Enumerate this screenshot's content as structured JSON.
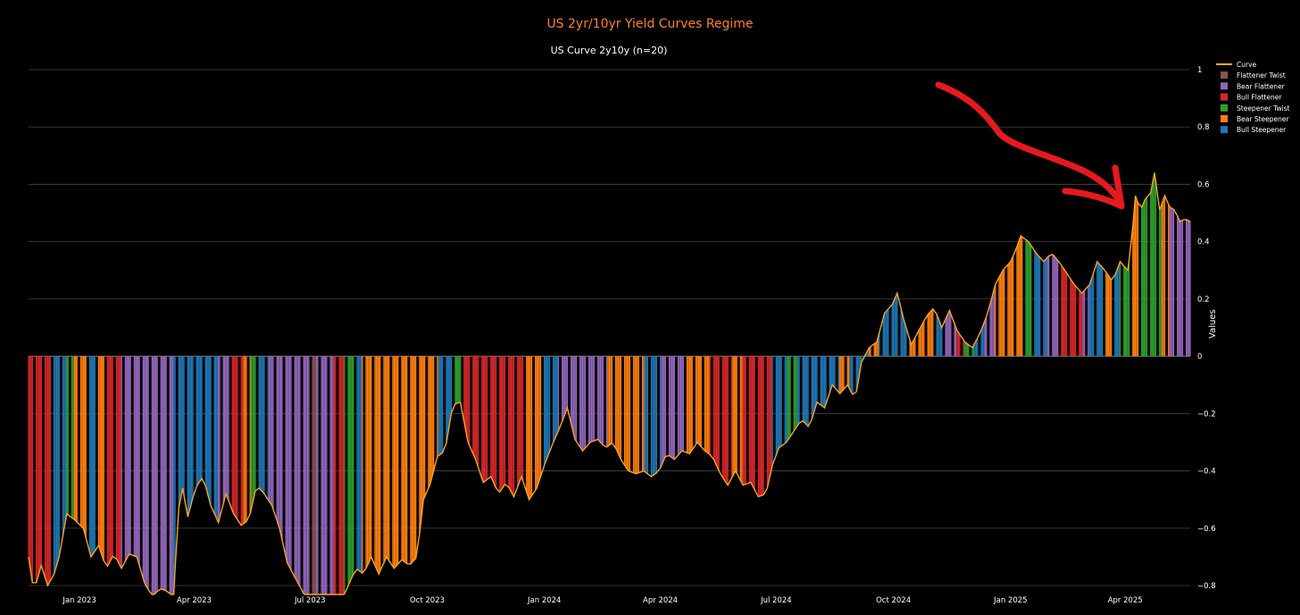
{
  "chart_data": {
    "type": "bar",
    "title": "US 2yr/10yr Yield Curves Regime",
    "subtitle": "US Curve 2y10y (n=20)",
    "ylabel": "Values",
    "xlabel": "",
    "ylim": [
      -0.8,
      1.0
    ],
    "xlim": [
      "2022-11-22",
      "2025-05-22"
    ],
    "grid": true,
    "legend_position": "top-right",
    "y_ticks": [
      {
        "value": 1.0,
        "label": "1"
      },
      {
        "value": 0.8,
        "label": "0.8"
      },
      {
        "value": 0.6,
        "label": "0.6"
      },
      {
        "value": 0.4,
        "label": "0.4"
      },
      {
        "value": 0.2,
        "label": "0.2"
      },
      {
        "value": 0.0,
        "label": "0"
      },
      {
        "value": -0.2,
        "label": "−0.2"
      },
      {
        "value": -0.4,
        "label": "−0.4"
      },
      {
        "value": -0.6,
        "label": "−0.6"
      },
      {
        "value": -0.8,
        "label": "−0.8"
      }
    ],
    "x_ticks": [
      {
        "date": "2023-01-01",
        "label": "Jan 2023"
      },
      {
        "date": "2023-04-01",
        "label": "Apr 2023"
      },
      {
        "date": "2023-07-01",
        "label": "Jul 2023"
      },
      {
        "date": "2023-10-01",
        "label": "Oct 2023"
      },
      {
        "date": "2024-01-01",
        "label": "Jan 2024"
      },
      {
        "date": "2024-04-01",
        "label": "Apr 2024"
      },
      {
        "date": "2024-07-01",
        "label": "Jul 2024"
      },
      {
        "date": "2024-10-01",
        "label": "Oct 2024"
      },
      {
        "date": "2025-01-01",
        "label": "Jan 2025"
      },
      {
        "date": "2025-04-01",
        "label": "Apr 2025"
      }
    ],
    "legend": [
      {
        "name": "Curve",
        "kind": "line",
        "color": "#f5a623"
      },
      {
        "name": "Flattener Twist",
        "kind": "bar",
        "color": "#8c564b"
      },
      {
        "name": "Bear Flattener",
        "kind": "bar",
        "color": "#9467bd"
      },
      {
        "name": "Bull Flattener",
        "kind": "bar",
        "color": "#d62728"
      },
      {
        "name": "Steepener Twist",
        "kind": "bar",
        "color": "#2ca02c"
      },
      {
        "name": "Bear Steepener",
        "kind": "bar",
        "color": "#ff7f0e"
      },
      {
        "name": "Bull Steepener",
        "kind": "bar",
        "color": "#1f77b4"
      }
    ],
    "curve_keypoints": [
      [
        "2022-11-22",
        -0.7
      ],
      [
        "2022-11-26",
        -0.82
      ],
      [
        "2022-12-02",
        -0.73
      ],
      [
        "2022-12-07",
        -0.8
      ],
      [
        "2022-12-12",
        -0.76
      ],
      [
        "2022-12-16",
        -0.7
      ],
      [
        "2022-12-22",
        -0.55
      ],
      [
        "2022-12-28",
        -0.57
      ],
      [
        "2023-01-04",
        -0.6
      ],
      [
        "2023-01-10",
        -0.7
      ],
      [
        "2023-01-16",
        -0.66
      ],
      [
        "2023-01-22",
        -0.74
      ],
      [
        "2023-01-28",
        -0.69
      ],
      [
        "2023-02-03",
        -0.74
      ],
      [
        "2023-02-09",
        -0.69
      ],
      [
        "2023-02-15",
        -0.7
      ],
      [
        "2023-02-21",
        -0.79
      ],
      [
        "2023-02-27",
        -0.84
      ],
      [
        "2023-03-05",
        -0.81
      ],
      [
        "2023-03-11",
        -0.82
      ],
      [
        "2023-03-16",
        -0.84
      ],
      [
        "2023-03-19",
        -0.55
      ],
      [
        "2023-03-23",
        -0.46
      ],
      [
        "2023-03-27",
        -0.56
      ],
      [
        "2023-04-02",
        -0.46
      ],
      [
        "2023-04-08",
        -0.42
      ],
      [
        "2023-04-14",
        -0.52
      ],
      [
        "2023-04-20",
        -0.58
      ],
      [
        "2023-04-26",
        -0.48
      ],
      [
        "2023-05-02",
        -0.55
      ],
      [
        "2023-05-08",
        -0.59
      ],
      [
        "2023-05-14",
        -0.57
      ],
      [
        "2023-05-20",
        -0.45
      ],
      [
        "2023-05-26",
        -0.48
      ],
      [
        "2023-06-01",
        -0.52
      ],
      [
        "2023-06-07",
        -0.6
      ],
      [
        "2023-06-13",
        -0.72
      ],
      [
        "2023-06-19",
        -0.77
      ],
      [
        "2023-06-25",
        -0.82
      ],
      [
        "2023-07-01",
        -0.87
      ],
      [
        "2023-07-07",
        -0.89
      ],
      [
        "2023-07-13",
        -0.85
      ],
      [
        "2023-07-19",
        -0.87
      ],
      [
        "2023-07-25",
        -0.86
      ],
      [
        "2023-07-31",
        -0.8
      ],
      [
        "2023-08-06",
        -0.74
      ],
      [
        "2023-08-12",
        -0.76
      ],
      [
        "2023-08-18",
        -0.7
      ],
      [
        "2023-08-24",
        -0.76
      ],
      [
        "2023-08-30",
        -0.7
      ],
      [
        "2023-09-05",
        -0.74
      ],
      [
        "2023-09-11",
        -0.71
      ],
      [
        "2023-09-17",
        -0.73
      ],
      [
        "2023-09-23",
        -0.7
      ],
      [
        "2023-09-28",
        -0.5
      ],
      [
        "2023-10-03",
        -0.45
      ],
      [
        "2023-10-09",
        -0.35
      ],
      [
        "2023-10-15",
        -0.33
      ],
      [
        "2023-10-21",
        -0.17
      ],
      [
        "2023-10-27",
        -0.16
      ],
      [
        "2023-11-02",
        -0.3
      ],
      [
        "2023-11-08",
        -0.36
      ],
      [
        "2023-11-14",
        -0.44
      ],
      [
        "2023-11-20",
        -0.42
      ],
      [
        "2023-11-26",
        -0.48
      ],
      [
        "2023-12-02",
        -0.44
      ],
      [
        "2023-12-08",
        -0.49
      ],
      [
        "2023-12-14",
        -0.42
      ],
      [
        "2023-12-20",
        -0.5
      ],
      [
        "2023-12-26",
        -0.46
      ],
      [
        "2024-01-01",
        -0.38
      ],
      [
        "2024-01-07",
        -0.31
      ],
      [
        "2024-01-13",
        -0.25
      ],
      [
        "2024-01-19",
        -0.18
      ],
      [
        "2024-01-25",
        -0.29
      ],
      [
        "2024-01-31",
        -0.33
      ],
      [
        "2024-02-06",
        -0.3
      ],
      [
        "2024-02-12",
        -0.29
      ],
      [
        "2024-02-18",
        -0.32
      ],
      [
        "2024-02-24",
        -0.3
      ],
      [
        "2024-03-01",
        -0.36
      ],
      [
        "2024-03-07",
        -0.4
      ],
      [
        "2024-03-13",
        -0.41
      ],
      [
        "2024-03-19",
        -0.4
      ],
      [
        "2024-03-25",
        -0.42
      ],
      [
        "2024-03-31",
        -0.4
      ],
      [
        "2024-04-06",
        -0.34
      ],
      [
        "2024-04-12",
        -0.36
      ],
      [
        "2024-04-18",
        -0.33
      ],
      [
        "2024-04-24",
        -0.34
      ],
      [
        "2024-04-30",
        -0.3
      ],
      [
        "2024-05-06",
        -0.33
      ],
      [
        "2024-05-12",
        -0.35
      ],
      [
        "2024-05-18",
        -0.41
      ],
      [
        "2024-05-24",
        -0.45
      ],
      [
        "2024-05-30",
        -0.4
      ],
      [
        "2024-06-05",
        -0.45
      ],
      [
        "2024-06-11",
        -0.44
      ],
      [
        "2024-06-17",
        -0.49
      ],
      [
        "2024-06-23",
        -0.48
      ],
      [
        "2024-06-28",
        -0.38
      ],
      [
        "2024-07-03",
        -0.32
      ],
      [
        "2024-07-09",
        -0.3
      ],
      [
        "2024-07-15",
        -0.26
      ],
      [
        "2024-07-21",
        -0.22
      ],
      [
        "2024-07-27",
        -0.25
      ],
      [
        "2024-08-02",
        -0.16
      ],
      [
        "2024-08-08",
        -0.18
      ],
      [
        "2024-08-14",
        -0.1
      ],
      [
        "2024-08-20",
        -0.13
      ],
      [
        "2024-08-26",
        -0.1
      ],
      [
        "2024-09-01",
        -0.15
      ],
      [
        "2024-09-06",
        -0.02
      ],
      [
        "2024-09-12",
        0.03
      ],
      [
        "2024-09-18",
        0.05
      ],
      [
        "2024-09-24",
        0.15
      ],
      [
        "2024-09-30",
        0.18
      ],
      [
        "2024-10-04",
        0.22
      ],
      [
        "2024-10-09",
        0.13
      ],
      [
        "2024-10-15",
        0.04
      ],
      [
        "2024-10-21",
        0.09
      ],
      [
        "2024-10-27",
        0.14
      ],
      [
        "2024-11-02",
        0.17
      ],
      [
        "2024-11-08",
        0.1
      ],
      [
        "2024-11-14",
        0.16
      ],
      [
        "2024-11-20",
        0.09
      ],
      [
        "2024-11-26",
        0.05
      ],
      [
        "2024-12-02",
        0.03
      ],
      [
        "2024-12-08",
        0.08
      ],
      [
        "2024-12-14",
        0.15
      ],
      [
        "2024-12-20",
        0.25
      ],
      [
        "2024-12-26",
        0.3
      ],
      [
        "2025-01-01",
        0.33
      ],
      [
        "2025-01-05",
        0.37
      ],
      [
        "2025-01-09",
        0.42
      ],
      [
        "2025-01-15",
        0.4
      ],
      [
        "2025-01-21",
        0.36
      ],
      [
        "2025-01-27",
        0.33
      ],
      [
        "2025-02-02",
        0.36
      ],
      [
        "2025-02-08",
        0.33
      ],
      [
        "2025-02-14",
        0.29
      ],
      [
        "2025-02-20",
        0.25
      ],
      [
        "2025-02-26",
        0.22
      ],
      [
        "2025-03-04",
        0.25
      ],
      [
        "2025-03-10",
        0.33
      ],
      [
        "2025-03-16",
        0.3
      ],
      [
        "2025-03-22",
        0.26
      ],
      [
        "2025-03-28",
        0.33
      ],
      [
        "2025-04-03",
        0.3
      ],
      [
        "2025-04-06",
        0.4
      ],
      [
        "2025-04-09",
        0.56
      ],
      [
        "2025-04-13",
        0.51
      ],
      [
        "2025-04-17",
        0.55
      ],
      [
        "2025-04-21",
        0.57
      ],
      [
        "2025-04-24",
        0.64
      ],
      [
        "2025-04-28",
        0.51
      ],
      [
        "2025-05-02",
        0.56
      ],
      [
        "2025-05-06",
        0.52
      ],
      [
        "2025-05-10",
        0.51
      ],
      [
        "2025-05-14",
        0.47
      ],
      [
        "2025-05-18",
        0.48
      ],
      [
        "2025-05-22",
        0.47
      ]
    ],
    "regime_segments": [
      {
        "start": "2022-11-22",
        "end": "2022-12-12",
        "regime": "Bull Flattener"
      },
      {
        "start": "2022-12-12",
        "end": "2022-12-22",
        "regime": "Bull Steepener"
      },
      {
        "start": "2022-12-22",
        "end": "2022-12-28",
        "regime": "Steepener Twist"
      },
      {
        "start": "2022-12-28",
        "end": "2023-01-09",
        "regime": "Bear Steepener"
      },
      {
        "start": "2023-01-09",
        "end": "2023-01-16",
        "regime": "Bull Steepener"
      },
      {
        "start": "2023-01-16",
        "end": "2023-01-23",
        "regime": "Bear Steepener"
      },
      {
        "start": "2023-01-23",
        "end": "2023-02-03",
        "regime": "Bull Flattener"
      },
      {
        "start": "2023-02-03",
        "end": "2023-03-16",
        "regime": "Bear Flattener"
      },
      {
        "start": "2023-03-16",
        "end": "2023-04-20",
        "regime": "Bull Steepener"
      },
      {
        "start": "2023-04-20",
        "end": "2023-05-01",
        "regime": "Bear Flattener"
      },
      {
        "start": "2023-05-01",
        "end": "2023-05-10",
        "regime": "Bull Flattener"
      },
      {
        "start": "2023-05-10",
        "end": "2023-05-16",
        "regime": "Bear Steepener"
      },
      {
        "start": "2023-05-16",
        "end": "2023-05-22",
        "regime": "Steepener Twist"
      },
      {
        "start": "2023-05-22",
        "end": "2023-05-30",
        "regime": "Bull Steepener"
      },
      {
        "start": "2023-05-30",
        "end": "2023-07-01",
        "regime": "Bear Flattener"
      },
      {
        "start": "2023-07-01",
        "end": "2023-07-06",
        "regime": "Flattener Twist"
      },
      {
        "start": "2023-07-06",
        "end": "2023-07-20",
        "regime": "Bear Flattener"
      },
      {
        "start": "2023-07-20",
        "end": "2023-07-28",
        "regime": "Bull Flattener"
      },
      {
        "start": "2023-07-28",
        "end": "2023-08-05",
        "regime": "Steepener Twist"
      },
      {
        "start": "2023-08-05",
        "end": "2023-08-11",
        "regime": "Bull Steepener"
      },
      {
        "start": "2023-08-11",
        "end": "2023-09-28",
        "regime": "Bear Steepener"
      },
      {
        "start": "2023-09-28",
        "end": "2023-10-10",
        "regime": "Bear Steepener"
      },
      {
        "start": "2023-10-10",
        "end": "2023-10-22",
        "regime": "Bull Steepener"
      },
      {
        "start": "2023-10-22",
        "end": "2023-10-30",
        "regime": "Steepener Twist"
      },
      {
        "start": "2023-10-30",
        "end": "2023-12-18",
        "regime": "Bull Flattener"
      },
      {
        "start": "2023-12-18",
        "end": "2023-12-31",
        "regime": "Bear Steepener"
      },
      {
        "start": "2023-12-31",
        "end": "2024-01-12",
        "regime": "Bull Steepener"
      },
      {
        "start": "2024-01-12",
        "end": "2024-02-20",
        "regime": "Bear Flattener"
      },
      {
        "start": "2024-02-20",
        "end": "2024-03-20",
        "regime": "Bear Steepener"
      },
      {
        "start": "2024-03-20",
        "end": "2024-04-02",
        "regime": "Bull Steepener"
      },
      {
        "start": "2024-04-02",
        "end": "2024-04-20",
        "regime": "Bear Flattener"
      },
      {
        "start": "2024-04-20",
        "end": "2024-05-10",
        "regime": "Bear Steepener"
      },
      {
        "start": "2024-05-10",
        "end": "2024-05-28",
        "regime": "Bull Flattener"
      },
      {
        "start": "2024-05-28",
        "end": "2024-06-05",
        "regime": "Bear Steepener"
      },
      {
        "start": "2024-06-05",
        "end": "2024-06-28",
        "regime": "Bull Flattener"
      },
      {
        "start": "2024-06-28",
        "end": "2024-07-10",
        "regime": "Bull Steepener"
      },
      {
        "start": "2024-07-10",
        "end": "2024-07-18",
        "regime": "Steepener Twist"
      },
      {
        "start": "2024-07-18",
        "end": "2024-08-20",
        "regime": "Bull Steepener"
      },
      {
        "start": "2024-08-20",
        "end": "2024-08-28",
        "regime": "Bear Steepener"
      },
      {
        "start": "2024-08-28",
        "end": "2024-09-12",
        "regime": "Bull Steepener"
      },
      {
        "start": "2024-09-12",
        "end": "2024-09-20",
        "regime": "Bear Steepener"
      },
      {
        "start": "2024-09-20",
        "end": "2024-10-12",
        "regime": "Bull Steepener"
      },
      {
        "start": "2024-10-12",
        "end": "2024-11-02",
        "regime": "Bear Steepener"
      },
      {
        "start": "2024-11-02",
        "end": "2024-11-10",
        "regime": "Bull Steepener"
      },
      {
        "start": "2024-11-10",
        "end": "2024-11-20",
        "regime": "Bear Flattener"
      },
      {
        "start": "2024-11-20",
        "end": "2024-11-26",
        "regime": "Bull Flattener"
      },
      {
        "start": "2024-11-26",
        "end": "2024-12-04",
        "regime": "Steepener Twist"
      },
      {
        "start": "2024-12-04",
        "end": "2024-12-12",
        "regime": "Bull Steepener"
      },
      {
        "start": "2024-12-12",
        "end": "2024-12-20",
        "regime": "Bear Flattener"
      },
      {
        "start": "2024-12-20",
        "end": "2025-01-12",
        "regime": "Bear Steepener"
      },
      {
        "start": "2025-01-12",
        "end": "2025-01-20",
        "regime": "Steepener Twist"
      },
      {
        "start": "2025-01-20",
        "end": "2025-01-30",
        "regime": "Bull Steepener"
      },
      {
        "start": "2025-01-30",
        "end": "2025-02-08",
        "regime": "Bear Flattener"
      },
      {
        "start": "2025-02-08",
        "end": "2025-02-27",
        "regime": "Bull Flattener"
      },
      {
        "start": "2025-02-27",
        "end": "2025-03-04",
        "regime": "Bear Flattener"
      },
      {
        "start": "2025-03-04",
        "end": "2025-03-16",
        "regime": "Bull Steepener"
      },
      {
        "start": "2025-03-16",
        "end": "2025-03-22",
        "regime": "Bear Steepener"
      },
      {
        "start": "2025-03-22",
        "end": "2025-03-28",
        "regime": "Bull Steepener"
      },
      {
        "start": "2025-03-28",
        "end": "2025-04-07",
        "regime": "Steepener Twist"
      },
      {
        "start": "2025-04-07",
        "end": "2025-04-13",
        "regime": "Bear Steepener"
      },
      {
        "start": "2025-04-13",
        "end": "2025-04-30",
        "regime": "Steepener Twist"
      },
      {
        "start": "2025-04-30",
        "end": "2025-05-06",
        "regime": "Bear Steepener"
      },
      {
        "start": "2025-05-06",
        "end": "2025-05-22",
        "regime": "Bear Flattener"
      }
    ]
  },
  "colors": {
    "background": "#000000",
    "grid": "#444444",
    "title": "#ff7f2a",
    "text": "#ffffff",
    "curve": "#f5a623",
    "annotation_arrow": "#e8191e"
  }
}
